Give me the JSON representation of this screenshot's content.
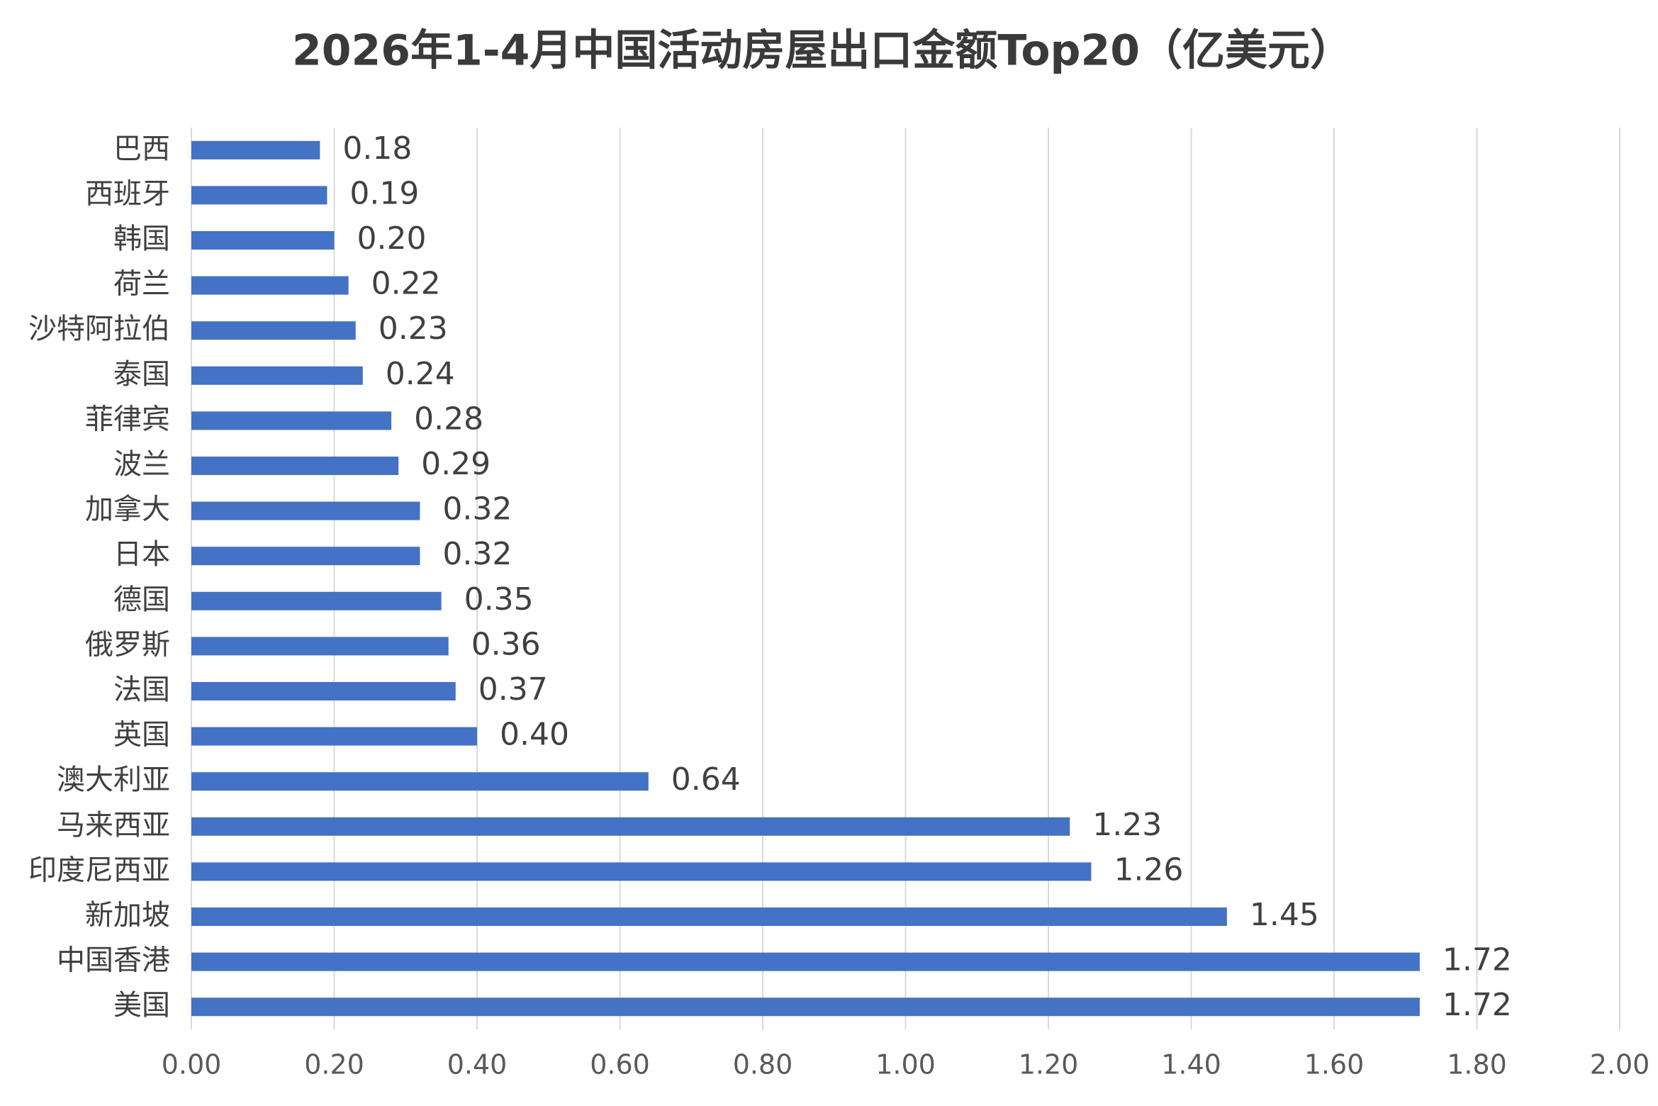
{
  "chart_data": {
    "type": "hbar",
    "title": "2026年1-4月中国活动房屋出口金额Top20（亿美元）",
    "categories": [
      "巴西",
      "西班牙",
      "韩国",
      "荷兰",
      "沙特阿拉伯",
      "泰国",
      "菲律宾",
      "波兰",
      "加拿大",
      "日本",
      "德国",
      "俄罗斯",
      "法国",
      "英国",
      "澳大利亚",
      "马来西亚",
      "印度尼西亚",
      "新加坡",
      "中国香港",
      "美国"
    ],
    "values": [
      0.18,
      0.19,
      0.2,
      0.22,
      0.23,
      0.24,
      0.28,
      0.29,
      0.32,
      0.32,
      0.35,
      0.36,
      0.37,
      0.4,
      0.64,
      1.23,
      1.26,
      1.45,
      1.72,
      1.72
    ],
    "value_labels": [
      "0.18",
      "0.19",
      "0.20",
      "0.22",
      "0.23",
      "0.24",
      "0.28",
      "0.29",
      "0.32",
      "0.32",
      "0.35",
      "0.36",
      "0.37",
      "0.40",
      "0.64",
      "1.23",
      "1.26",
      "1.45",
      "1.72",
      "1.72"
    ],
    "color": "#4472c4",
    "xlim": [
      0,
      2
    ],
    "xticks": [
      {
        "value": 0,
        "label": "0.00"
      },
      {
        "value": 0.2,
        "label": "0.20"
      },
      {
        "value": 0.4,
        "label": "0.40"
      },
      {
        "value": 0.6,
        "label": "0.60"
      },
      {
        "value": 0.8,
        "label": "0.80"
      },
      {
        "value": 1,
        "label": "1.00"
      },
      {
        "value": 1.2,
        "label": "1.20"
      },
      {
        "value": 1.4,
        "label": "1.40"
      },
      {
        "value": 1.6,
        "label": "1.60"
      },
      {
        "value": 1.8,
        "label": "1.80"
      },
      {
        "value": 2,
        "label": "2.00"
      }
    ],
    "grid": true
  }
}
